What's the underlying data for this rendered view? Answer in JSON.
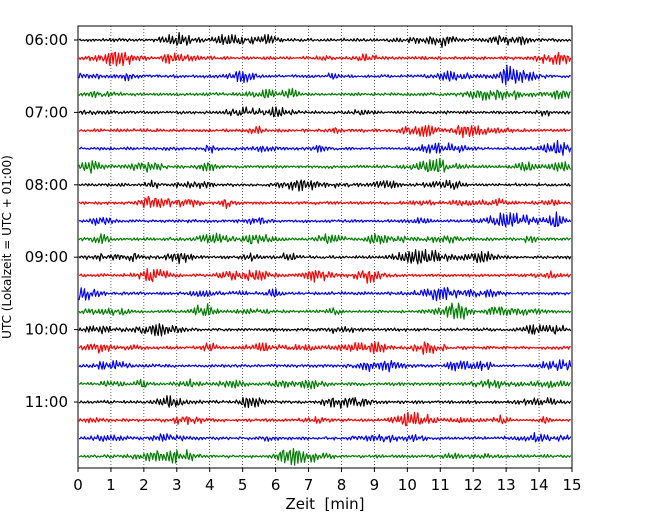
{
  "chart_data": {
    "type": "line",
    "xlabel": "Zeit  [min]",
    "ylabel": "UTC (Lokalzeit = UTC + 01:00)",
    "xlim": [
      0,
      15
    ],
    "x_ticks": [
      "0",
      "1",
      "2",
      "3",
      "4",
      "5",
      "6",
      "7",
      "8",
      "9",
      "10",
      "11",
      "12",
      "13",
      "14",
      "15"
    ],
    "y_ticks": [
      "06:00",
      "07:00",
      "08:00",
      "09:00",
      "10:00",
      "11:00"
    ],
    "trace_interval_min": 15,
    "trace_count": 24,
    "first_trace": "06:00",
    "trace_colors": [
      "#000000",
      "#ff0000",
      "#0000ff",
      "#007f00"
    ],
    "grid": "vertical, dotted, every 1 min"
  }
}
